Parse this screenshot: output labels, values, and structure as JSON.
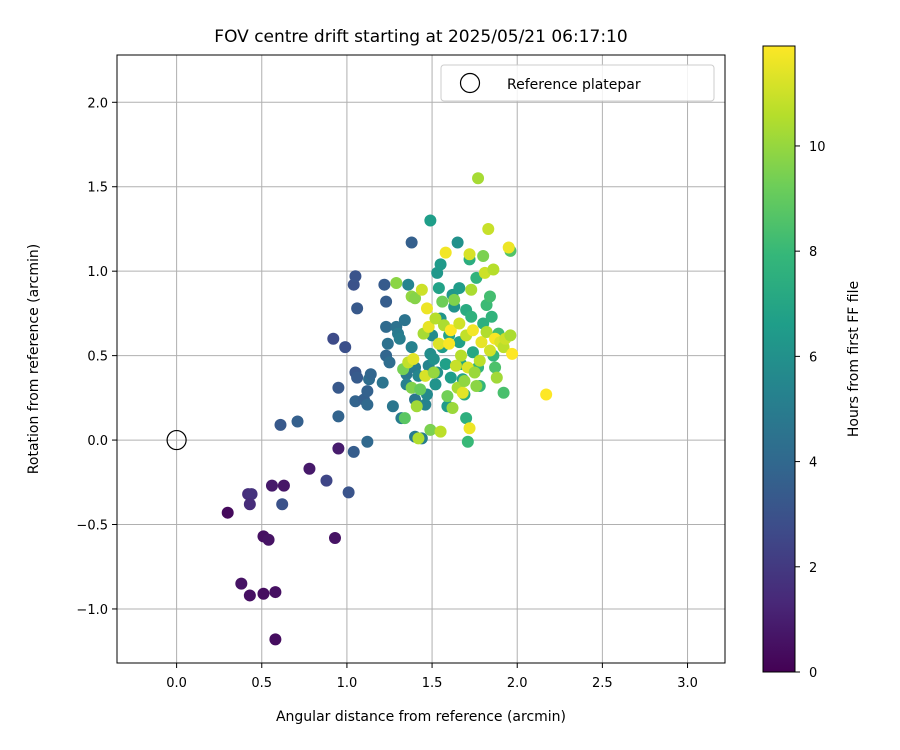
{
  "chart_data": {
    "type": "scatter",
    "title": "FOV centre drift starting at 2025/05/21 06:17:10",
    "xlabel": "Angular distance from reference (arcmin)",
    "ylabel": "Rotation from reference (arcmin)",
    "xlim": [
      -0.35,
      3.22
    ],
    "ylim": [
      -1.32,
      2.28
    ],
    "xticks": [
      0.0,
      0.5,
      1.0,
      1.5,
      2.0,
      2.5,
      3.0
    ],
    "xtick_labels": [
      "0.0",
      "0.5",
      "1.0",
      "1.5",
      "2.0",
      "2.5",
      "3.0"
    ],
    "yticks": [
      -1.0,
      -0.5,
      0.0,
      0.5,
      1.0,
      1.5,
      2.0
    ],
    "ytick_labels": [
      "−1.0",
      "−0.5",
      "0.0",
      "0.5",
      "1.0",
      "1.5",
      "2.0"
    ],
    "grid": true,
    "legend": {
      "placement": "top-right",
      "entries": [
        {
          "label": "Reference platepar",
          "marker": "open-circle"
        }
      ]
    },
    "reference_point": {
      "x": 0.0,
      "y": 0.0,
      "label": "Reference platepar"
    },
    "colorbar": {
      "label": "Hours from first FF file",
      "colormap": "viridis",
      "range": [
        0,
        11.9
      ],
      "ticks": [
        0,
        2,
        4,
        6,
        8,
        10
      ],
      "tick_labels": [
        "0",
        "2",
        "4",
        "6",
        "8",
        "10"
      ]
    },
    "colormap_stops": [
      "#440154",
      "#482878",
      "#3e4a89",
      "#31688e",
      "#26828e",
      "#1f9e89",
      "#35b779",
      "#6ece58",
      "#b5de2b",
      "#fde725"
    ],
    "points": [
      {
        "x": 0.3,
        "y": -0.43,
        "h": 0.3
      },
      {
        "x": 0.38,
        "y": -0.85,
        "h": 0.6
      },
      {
        "x": 0.43,
        "y": -0.92,
        "h": 0.5
      },
      {
        "x": 0.51,
        "y": -0.91,
        "h": 0.4
      },
      {
        "x": 0.58,
        "y": -0.9,
        "h": 0.5
      },
      {
        "x": 0.58,
        "y": -1.18,
        "h": 0.4
      },
      {
        "x": 0.51,
        "y": -0.57,
        "h": 0.5
      },
      {
        "x": 0.54,
        "y": -0.59,
        "h": 0.6
      },
      {
        "x": 0.56,
        "y": -0.27,
        "h": 0.8
      },
      {
        "x": 0.63,
        "y": -0.27,
        "h": 0.7
      },
      {
        "x": 0.42,
        "y": -0.32,
        "h": 1.6
      },
      {
        "x": 0.44,
        "y": -0.32,
        "h": 1.7
      },
      {
        "x": 0.43,
        "y": -0.38,
        "h": 1.5
      },
      {
        "x": 0.78,
        "y": -0.17,
        "h": 0.8
      },
      {
        "x": 0.93,
        "y": -0.58,
        "h": 0.6
      },
      {
        "x": 0.95,
        "y": -0.05,
        "h": 0.9
      },
      {
        "x": 0.62,
        "y": -0.38,
        "h": 3.0
      },
      {
        "x": 0.61,
        "y": 0.09,
        "h": 3.3
      },
      {
        "x": 0.71,
        "y": 0.11,
        "h": 3.6
      },
      {
        "x": 0.88,
        "y": -0.24,
        "h": 2.5
      },
      {
        "x": 1.01,
        "y": -0.31,
        "h": 3.1
      },
      {
        "x": 0.92,
        "y": 0.6,
        "h": 2.7
      },
      {
        "x": 0.99,
        "y": 0.55,
        "h": 2.9
      },
      {
        "x": 0.95,
        "y": 0.31,
        "h": 3.3
      },
      {
        "x": 0.95,
        "y": 0.14,
        "h": 3.8
      },
      {
        "x": 1.04,
        "y": -0.07,
        "h": 3.5
      },
      {
        "x": 1.12,
        "y": -0.01,
        "h": 4.0
      },
      {
        "x": 1.04,
        "y": 0.92,
        "h": 3.0
      },
      {
        "x": 1.05,
        "y": 0.97,
        "h": 3.1
      },
      {
        "x": 1.06,
        "y": 0.78,
        "h": 3.3
      },
      {
        "x": 1.05,
        "y": 0.4,
        "h": 3.2
      },
      {
        "x": 1.06,
        "y": 0.37,
        "h": 3.4
      },
      {
        "x": 1.05,
        "y": 0.23,
        "h": 3.8
      },
      {
        "x": 1.1,
        "y": 0.24,
        "h": 3.6
      },
      {
        "x": 1.12,
        "y": 0.21,
        "h": 4.0
      },
      {
        "x": 1.12,
        "y": 0.29,
        "h": 3.7
      },
      {
        "x": 1.13,
        "y": 0.36,
        "h": 4.2
      },
      {
        "x": 1.14,
        "y": 0.39,
        "h": 3.9
      },
      {
        "x": 1.21,
        "y": 0.34,
        "h": 4.6
      },
      {
        "x": 1.22,
        "y": 0.92,
        "h": 3.4
      },
      {
        "x": 1.23,
        "y": 0.82,
        "h": 3.5
      },
      {
        "x": 1.23,
        "y": 0.67,
        "h": 4.1
      },
      {
        "x": 1.23,
        "y": 0.5,
        "h": 3.9
      },
      {
        "x": 1.24,
        "y": 0.57,
        "h": 4.4
      },
      {
        "x": 1.25,
        "y": 0.46,
        "h": 4.2
      },
      {
        "x": 1.27,
        "y": 0.2,
        "h": 4.7
      },
      {
        "x": 1.29,
        "y": 0.67,
        "h": 4.5
      },
      {
        "x": 1.3,
        "y": 0.63,
        "h": 4.9
      },
      {
        "x": 1.31,
        "y": 0.6,
        "h": 5.1
      },
      {
        "x": 1.32,
        "y": 0.13,
        "h": 5.0
      },
      {
        "x": 1.34,
        "y": 0.71,
        "h": 4.6
      },
      {
        "x": 1.35,
        "y": 0.39,
        "h": 4.8
      },
      {
        "x": 1.35,
        "y": 0.33,
        "h": 5.2
      },
      {
        "x": 1.36,
        "y": 0.92,
        "h": 5.4
      },
      {
        "x": 1.38,
        "y": 1.17,
        "h": 3.6
      },
      {
        "x": 1.38,
        "y": 0.55,
        "h": 5.3
      },
      {
        "x": 1.4,
        "y": 0.43,
        "h": 5.0
      },
      {
        "x": 1.4,
        "y": 0.24,
        "h": 4.7
      },
      {
        "x": 1.4,
        "y": 0.02,
        "h": 4.9
      },
      {
        "x": 1.42,
        "y": 0.38,
        "h": 5.5
      },
      {
        "x": 1.44,
        "y": 0.01,
        "h": 5.1
      },
      {
        "x": 1.46,
        "y": 0.21,
        "h": 5.3
      },
      {
        "x": 1.47,
        "y": 0.27,
        "h": 5.6
      },
      {
        "x": 1.48,
        "y": 0.44,
        "h": 5.4
      },
      {
        "x": 1.49,
        "y": 0.51,
        "h": 5.8
      },
      {
        "x": 1.5,
        "y": 0.62,
        "h": 5.7
      },
      {
        "x": 1.51,
        "y": 0.48,
        "h": 6.0
      },
      {
        "x": 1.52,
        "y": 0.33,
        "h": 6.1
      },
      {
        "x": 1.53,
        "y": 0.4,
        "h": 5.9
      },
      {
        "x": 1.53,
        "y": 0.99,
        "h": 6.3
      },
      {
        "x": 1.55,
        "y": 1.04,
        "h": 6.4
      },
      {
        "x": 1.55,
        "y": 0.72,
        "h": 6.2
      },
      {
        "x": 1.56,
        "y": 0.55,
        "h": 6.5
      },
      {
        "x": 1.58,
        "y": 0.45,
        "h": 6.7
      },
      {
        "x": 1.49,
        "y": 1.3,
        "h": 6.6
      },
      {
        "x": 1.54,
        "y": 0.9,
        "h": 6.8
      },
      {
        "x": 1.59,
        "y": 0.2,
        "h": 6.4
      },
      {
        "x": 1.6,
        "y": 0.62,
        "h": 6.9
      },
      {
        "x": 1.61,
        "y": 0.37,
        "h": 6.6
      },
      {
        "x": 1.62,
        "y": 0.86,
        "h": 6.3
      },
      {
        "x": 1.63,
        "y": 0.79,
        "h": 6.1
      },
      {
        "x": 1.65,
        "y": 1.17,
        "h": 6.0
      },
      {
        "x": 1.66,
        "y": 0.9,
        "h": 6.5
      },
      {
        "x": 1.66,
        "y": 0.58,
        "h": 6.7
      },
      {
        "x": 1.67,
        "y": 0.45,
        "h": 7.0
      },
      {
        "x": 1.68,
        "y": 0.36,
        "h": 6.8
      },
      {
        "x": 1.69,
        "y": 0.27,
        "h": 7.2
      },
      {
        "x": 1.7,
        "y": 0.13,
        "h": 7.5
      },
      {
        "x": 1.71,
        "y": -0.01,
        "h": 8.0
      },
      {
        "x": 1.7,
        "y": 0.77,
        "h": 7.3
      },
      {
        "x": 1.72,
        "y": 1.07,
        "h": 7.4
      },
      {
        "x": 1.73,
        "y": 0.73,
        "h": 7.6
      },
      {
        "x": 1.74,
        "y": 0.52,
        "h": 7.1
      },
      {
        "x": 1.76,
        "y": 0.96,
        "h": 7.7
      },
      {
        "x": 1.77,
        "y": 0.43,
        "h": 7.8
      },
      {
        "x": 1.78,
        "y": 0.32,
        "h": 7.9
      },
      {
        "x": 1.8,
        "y": 0.69,
        "h": 7.5
      },
      {
        "x": 1.82,
        "y": 0.8,
        "h": 8.1
      },
      {
        "x": 1.84,
        "y": 0.85,
        "h": 8.3
      },
      {
        "x": 1.85,
        "y": 0.73,
        "h": 7.7
      },
      {
        "x": 1.86,
        "y": 0.5,
        "h": 7.9
      },
      {
        "x": 1.87,
        "y": 0.43,
        "h": 8.5
      },
      {
        "x": 1.89,
        "y": 0.63,
        "h": 8.2
      },
      {
        "x": 1.92,
        "y": 0.28,
        "h": 8.4
      },
      {
        "x": 1.96,
        "y": 1.12,
        "h": 8.6
      },
      {
        "x": 1.29,
        "y": 0.93,
        "h": 9.8
      },
      {
        "x": 1.33,
        "y": 0.42,
        "h": 9.4
      },
      {
        "x": 1.34,
        "y": 0.13,
        "h": 8.8
      },
      {
        "x": 1.36,
        "y": 0.46,
        "h": 10.8
      },
      {
        "x": 1.38,
        "y": 0.85,
        "h": 9.9
      },
      {
        "x": 1.38,
        "y": 0.31,
        "h": 9.6
      },
      {
        "x": 1.39,
        "y": 0.48,
        "h": 11.4
      },
      {
        "x": 1.4,
        "y": 0.84,
        "h": 9.7
      },
      {
        "x": 1.41,
        "y": 0.2,
        "h": 10.2
      },
      {
        "x": 1.42,
        "y": 0.01,
        "h": 10.5
      },
      {
        "x": 1.43,
        "y": 0.3,
        "h": 9.1
      },
      {
        "x": 1.44,
        "y": 0.89,
        "h": 11.0
      },
      {
        "x": 1.45,
        "y": 0.63,
        "h": 10.3
      },
      {
        "x": 1.46,
        "y": 0.38,
        "h": 11.2
      },
      {
        "x": 1.47,
        "y": 0.78,
        "h": 11.6
      },
      {
        "x": 1.48,
        "y": 0.67,
        "h": 11.5
      },
      {
        "x": 1.49,
        "y": 0.06,
        "h": 9.5
      },
      {
        "x": 1.51,
        "y": 0.4,
        "h": 10.0
      },
      {
        "x": 1.52,
        "y": 0.72,
        "h": 10.6
      },
      {
        "x": 1.54,
        "y": 0.57,
        "h": 11.3
      },
      {
        "x": 1.55,
        "y": 0.05,
        "h": 10.7
      },
      {
        "x": 1.56,
        "y": 0.82,
        "h": 9.2
      },
      {
        "x": 1.57,
        "y": 0.68,
        "h": 10.4
      },
      {
        "x": 1.58,
        "y": 1.11,
        "h": 11.7
      },
      {
        "x": 1.59,
        "y": 0.26,
        "h": 9.3
      },
      {
        "x": 1.6,
        "y": 0.57,
        "h": 11.8
      },
      {
        "x": 1.61,
        "y": 0.65,
        "h": 11.9
      },
      {
        "x": 1.62,
        "y": 0.19,
        "h": 10.1
      },
      {
        "x": 1.63,
        "y": 0.83,
        "h": 9.6
      },
      {
        "x": 1.64,
        "y": 0.44,
        "h": 10.9
      },
      {
        "x": 1.65,
        "y": 0.31,
        "h": 10.3
      },
      {
        "x": 1.66,
        "y": 0.69,
        "h": 11.1
      },
      {
        "x": 1.67,
        "y": 0.5,
        "h": 10.6
      },
      {
        "x": 1.68,
        "y": 0.28,
        "h": 11.4
      },
      {
        "x": 1.69,
        "y": 0.35,
        "h": 9.9
      },
      {
        "x": 1.7,
        "y": 0.62,
        "h": 10.8
      },
      {
        "x": 1.71,
        "y": 0.43,
        "h": 11.3
      },
      {
        "x": 1.72,
        "y": 0.07,
        "h": 11.6
      },
      {
        "x": 1.72,
        "y": 1.1,
        "h": 11.2
      },
      {
        "x": 1.73,
        "y": 0.89,
        "h": 10.4
      },
      {
        "x": 1.74,
        "y": 0.65,
        "h": 11.7
      },
      {
        "x": 1.75,
        "y": 0.4,
        "h": 10.1
      },
      {
        "x": 1.76,
        "y": 0.32,
        "h": 9.8
      },
      {
        "x": 1.77,
        "y": 1.55,
        "h": 10.3
      },
      {
        "x": 1.78,
        "y": 0.47,
        "h": 10.7
      },
      {
        "x": 1.79,
        "y": 0.58,
        "h": 11.5
      },
      {
        "x": 1.8,
        "y": 1.09,
        "h": 9.5
      },
      {
        "x": 1.81,
        "y": 0.99,
        "h": 11.0
      },
      {
        "x": 1.82,
        "y": 0.64,
        "h": 10.5
      },
      {
        "x": 1.83,
        "y": 1.25,
        "h": 10.9
      },
      {
        "x": 1.84,
        "y": 0.53,
        "h": 11.1
      },
      {
        "x": 1.86,
        "y": 1.01,
        "h": 10.6
      },
      {
        "x": 1.87,
        "y": 0.6,
        "h": 11.8
      },
      {
        "x": 1.88,
        "y": 0.37,
        "h": 10.2
      },
      {
        "x": 1.9,
        "y": 0.58,
        "h": 11.3
      },
      {
        "x": 1.92,
        "y": 0.55,
        "h": 10.7
      },
      {
        "x": 1.93,
        "y": 0.6,
        "h": 11.0
      },
      {
        "x": 1.95,
        "y": 1.14,
        "h": 11.6
      },
      {
        "x": 1.96,
        "y": 0.62,
        "h": 10.4
      },
      {
        "x": 1.97,
        "y": 0.51,
        "h": 11.9
      },
      {
        "x": 2.17,
        "y": 0.27,
        "h": 11.9
      }
    ]
  }
}
